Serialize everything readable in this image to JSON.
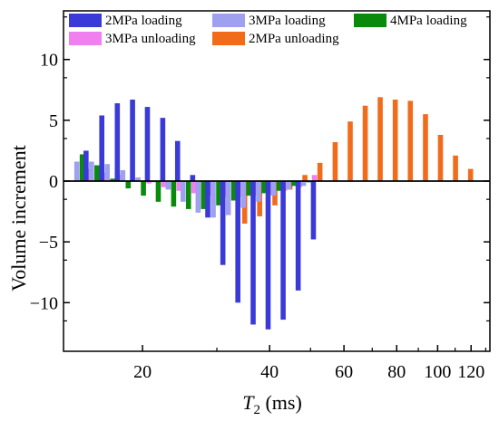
{
  "chart_data": {
    "type": "bar",
    "xlabel_main": "T",
    "xlabel_sub": "2",
    "xlabel_unit": " (ms)",
    "ylabel": "Volume increment",
    "x_scale": "log",
    "xlim": [
      13,
      133
    ],
    "ylim": [
      -14,
      14
    ],
    "y_ticks": [
      -10,
      -5,
      0,
      5,
      10
    ],
    "y_tick_labels": [
      "−10",
      "−5",
      "0",
      "5",
      "10"
    ],
    "x_ticks": [
      20,
      40,
      60,
      80,
      100,
      120
    ],
    "x_tick_labels": [
      "20",
      "40",
      "60",
      "80",
      "100",
      "120"
    ],
    "x_minor_ticks": [
      30,
      50,
      70,
      90,
      110,
      130
    ],
    "legend": {
      "position": "top",
      "columns": 3
    },
    "categories": [
      14.4,
      15.6,
      17.0,
      18.5,
      20.1,
      21.8,
      23.7,
      25.7,
      27.9,
      30.3,
      32.9,
      35.7,
      38.8,
      42.1,
      45.7,
      49.6,
      53.9,
      58.5,
      63.5,
      68.9,
      74.8,
      81.2,
      88.2,
      95.7,
      103.9,
      112.8,
      122.5
    ],
    "series": [
      {
        "name": "2MPa loading",
        "color": "#3a3ad8",
        "values": [
          0,
          2.5,
          5.4,
          6.4,
          6.7,
          6.1,
          5.2,
          3.3,
          0.5,
          -3.0,
          -6.9,
          -10.0,
          -11.8,
          -12.2,
          -11.4,
          -9.0,
          -4.8,
          0,
          0,
          0,
          0,
          0,
          0,
          0,
          0,
          0,
          0
        ]
      },
      {
        "name": "3MPa loading",
        "color": "#a0a0f0",
        "values": [
          1.6,
          1.6,
          1.4,
          0.9,
          0.3,
          -0.1,
          -0.7,
          -1.7,
          -2.6,
          -3.0,
          -2.8,
          -2.2,
          -1.7,
          -1.2,
          -0.7,
          -0.4,
          0,
          0,
          0,
          0,
          0,
          0,
          0,
          0,
          0,
          0,
          0
        ]
      },
      {
        "name": "4MPa loading",
        "color": "#0a8a0a",
        "values": [
          2.2,
          1.3,
          0.2,
          -0.6,
          -1.2,
          -1.7,
          -2.1,
          -2.3,
          -2.3,
          -2.0,
          -1.6,
          -1.2,
          -1.0,
          -0.8,
          -0.4,
          -0.1,
          0,
          0,
          0,
          0,
          0,
          0,
          0,
          0,
          0,
          0,
          0
        ]
      },
      {
        "name": "3MPa unloading",
        "color": "#f080f0",
        "values": [
          1.0,
          0.7,
          0.5,
          0.1,
          -0.2,
          -0.5,
          -0.8,
          -1.0,
          -1.2,
          -1.3,
          -1.3,
          -1.2,
          -1.1,
          -0.8,
          -0.5,
          0.5,
          0,
          0,
          0,
          0,
          0,
          0,
          0,
          0,
          0,
          0,
          0
        ]
      },
      {
        "name": "2MPa unloading",
        "color": "#f26b1b",
        "values": [
          0,
          0,
          0,
          0,
          0,
          0,
          0,
          0,
          0,
          0,
          -3.5,
          -2.9,
          -2.0,
          -0.7,
          0.5,
          1.5,
          3.2,
          4.9,
          6.2,
          6.9,
          6.7,
          6.6,
          5.5,
          3.8,
          2.1,
          1.0,
          0
        ]
      }
    ],
    "grid": false
  }
}
